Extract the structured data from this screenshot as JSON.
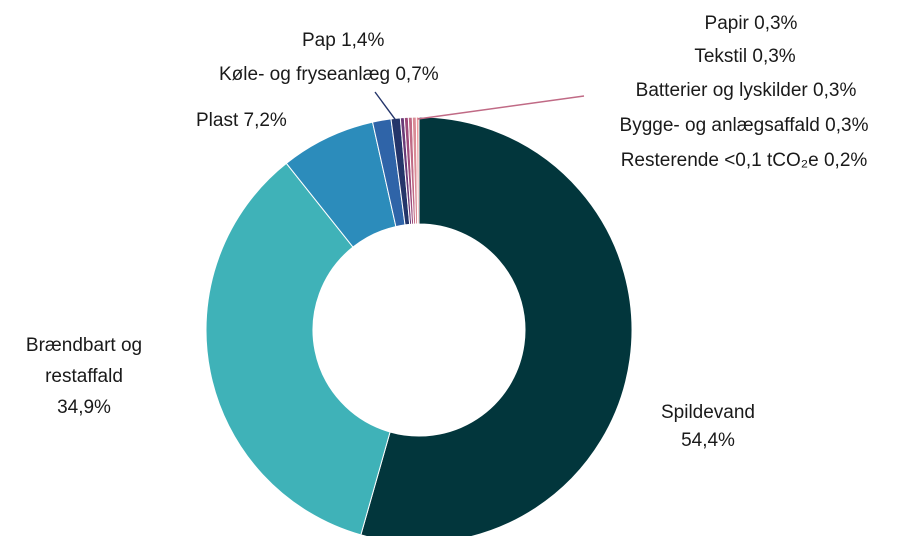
{
  "chart_data": {
    "type": "pie",
    "donut": true,
    "slices": [
      {
        "label": "Spildevand",
        "value": 54.4,
        "value_text": "54,4%",
        "color": "#02363c"
      },
      {
        "label": "Brændbart og restaffald",
        "value": 34.9,
        "value_text": "34,9%",
        "color": "#3fb2b8"
      },
      {
        "label": "Plast",
        "value": 7.2,
        "value_text": "7,2%",
        "color": "#2c8cbb"
      },
      {
        "label": "Pap",
        "value": 1.4,
        "value_text": "1,4%",
        "color": "#2f64a8"
      },
      {
        "label": "Køle- og fryseanlæg",
        "value": 0.7,
        "value_text": "0,7%",
        "color": "#24356a"
      },
      {
        "label": "Papir",
        "value": 0.3,
        "value_text": "0,3%",
        "color": "#6a3b78"
      },
      {
        "label": "Tekstil",
        "value": 0.3,
        "value_text": "0,3%",
        "color": "#9c4a7a"
      },
      {
        "label": "Batterier og lyskilder",
        "value": 0.3,
        "value_text": "0,3%",
        "color": "#c06a85"
      },
      {
        "label": "Bygge- og anlægsaffald",
        "value": 0.3,
        "value_text": "0,3%",
        "color": "#d98a95"
      },
      {
        "label": "Resterende <0,1 tCO₂e",
        "value": 0.2,
        "value_text": "0,2%",
        "color": "#ee9d9f"
      }
    ]
  }
}
